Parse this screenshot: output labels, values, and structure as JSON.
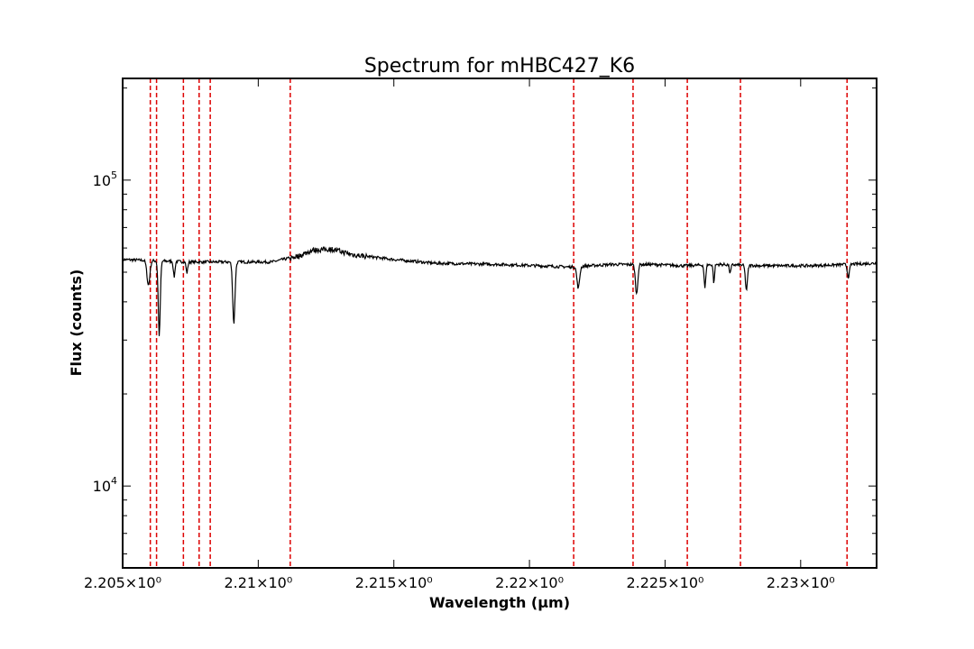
{
  "chart_data": {
    "type": "line",
    "title": "Spectrum for mHBC427_K6",
    "xlabel": "Wavelength (μm)",
    "ylabel": "Flux (counts)",
    "yscale": "log",
    "xlim": [
      2.205,
      2.2328
    ],
    "ylim": [
      5400,
      215000
    ],
    "grid": false,
    "x_ticks": [
      {
        "value": 2.205,
        "label": "2.205×10⁰"
      },
      {
        "value": 2.21,
        "label": "2.21×10⁰"
      },
      {
        "value": 2.215,
        "label": "2.215×10⁰"
      },
      {
        "value": 2.22,
        "label": "2.22×10⁰"
      },
      {
        "value": 2.225,
        "label": "2.225×10⁰"
      },
      {
        "value": 2.23,
        "label": "2.23×10⁰"
      }
    ],
    "y_ticks": [
      {
        "value": 10000,
        "base": "10",
        "exp": "4"
      },
      {
        "value": 100000,
        "base": "10",
        "exp": "5"
      }
    ],
    "line_color": "#000000",
    "reference_line_color": "#dd0000",
    "reference_lines_x": [
      2.20602,
      2.20625,
      2.20724,
      2.20782,
      2.20823,
      2.21118,
      2.22163,
      2.22382,
      2.22582,
      2.22778,
      2.23171
    ],
    "series": [
      {
        "continuum": [
          [
            2.205,
            55000
          ],
          [
            2.2075,
            54000
          ],
          [
            2.2105,
            54000
          ],
          [
            2.2115,
            56500
          ],
          [
            2.212,
            59000
          ],
          [
            2.2127,
            59500
          ],
          [
            2.2135,
            57000
          ],
          [
            2.215,
            55000
          ],
          [
            2.2165,
            53500
          ],
          [
            2.219,
            53000
          ],
          [
            2.2215,
            52000
          ],
          [
            2.223,
            53000
          ],
          [
            2.2245,
            53000
          ],
          [
            2.2257,
            52500
          ],
          [
            2.227,
            53000
          ],
          [
            2.2285,
            52500
          ],
          [
            2.2305,
            52500
          ],
          [
            2.2328,
            53500
          ]
        ],
        "absorption_lines": [
          {
            "x": 2.20595,
            "depth": 0.17,
            "width": 5.5e-05
          },
          {
            "x": 2.20635,
            "depth": 0.43,
            "width": 4e-05
          },
          {
            "x": 2.2069,
            "depth": 0.11,
            "width": 3e-05
          },
          {
            "x": 2.20737,
            "depth": 0.08,
            "width": 3e-05
          },
          {
            "x": 2.2091,
            "depth": 0.37,
            "width": 4.5e-05
          },
          {
            "x": 2.2218,
            "depth": 0.15,
            "width": 5e-05
          },
          {
            "x": 2.22395,
            "depth": 0.2,
            "width": 4.5e-05
          },
          {
            "x": 2.22647,
            "depth": 0.16,
            "width": 3e-05
          },
          {
            "x": 2.2268,
            "depth": 0.13,
            "width": 2.5e-05
          },
          {
            "x": 2.2274,
            "depth": 0.06,
            "width": 3e-05
          },
          {
            "x": 2.228,
            "depth": 0.17,
            "width": 4e-05
          },
          {
            "x": 2.23176,
            "depth": 0.09,
            "width": 4e-05
          }
        ]
      }
    ]
  }
}
